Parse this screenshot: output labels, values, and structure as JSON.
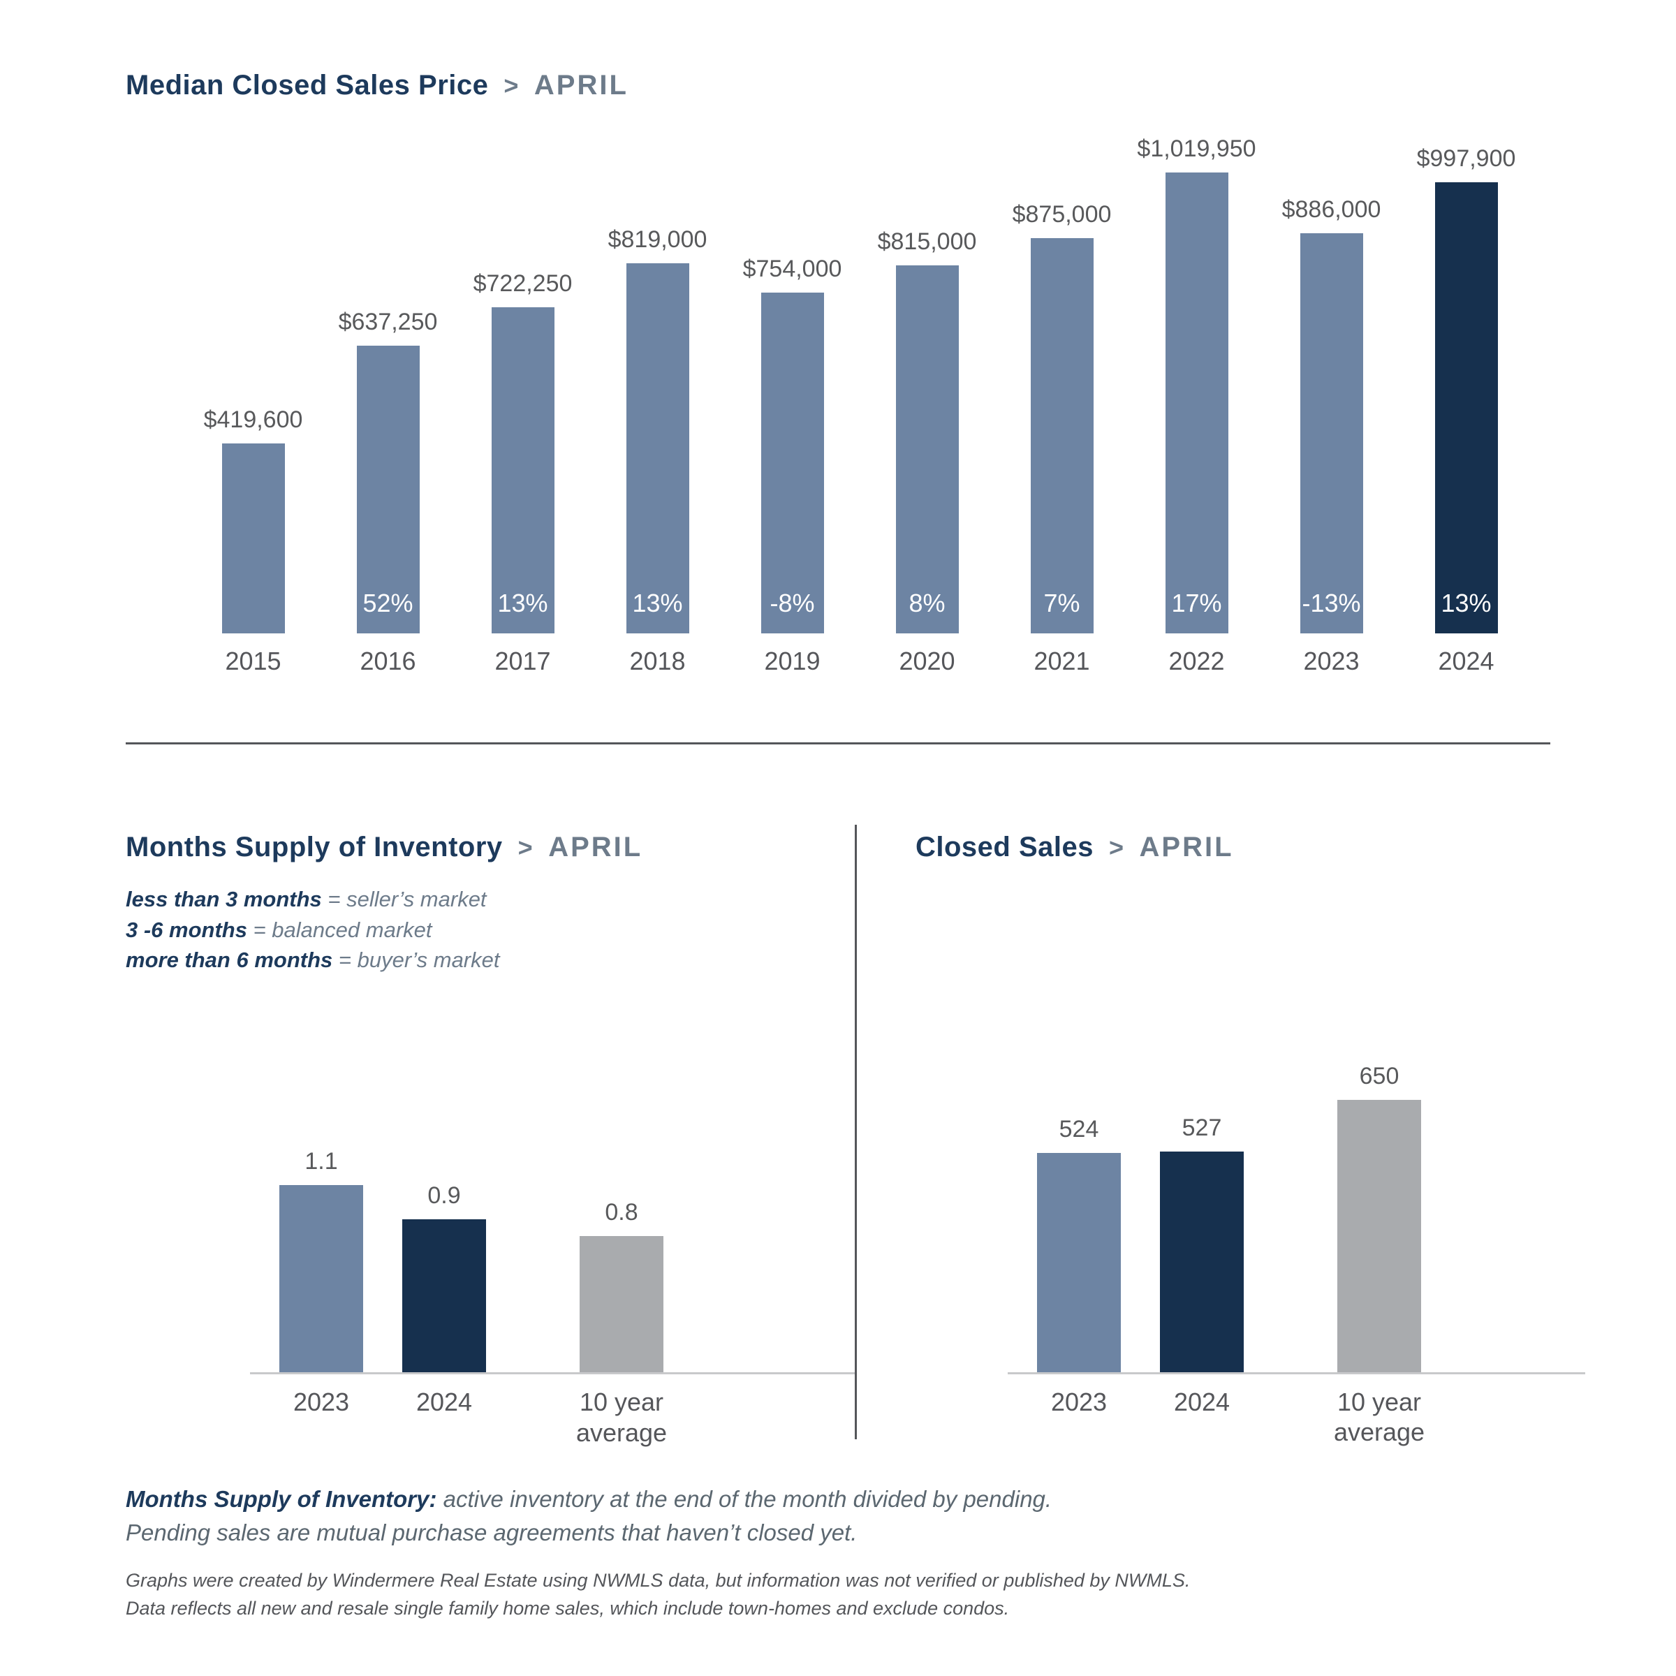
{
  "colors": {
    "bar_slate_blue": "#6D84A3",
    "bar_navy": "#16304E",
    "bar_gray": "#A9ABAE",
    "heading_navy": "#1D3A5C",
    "heading_gray": "#6D7B8A",
    "value_label_gray": "#58595B",
    "axis_label_gray": "#55565A",
    "percent_label_white": "#FFFFFF",
    "divider_gray": "#54565A",
    "baseline_gray": "#C8C9CB",
    "footnote_gray": "#5B6770",
    "disclaimer_gray": "#54565A"
  },
  "chart_data": [
    {
      "type": "bar",
      "title": "Median Closed Sales Price",
      "separator": ">",
      "month": "APRIL",
      "categories": [
        "2015",
        "2016",
        "2017",
        "2018",
        "2019",
        "2020",
        "2021",
        "2022",
        "2023",
        "2024"
      ],
      "values": [
        419600,
        637250,
        722250,
        819000,
        754000,
        815000,
        875000,
        1019950,
        886000,
        997900
      ],
      "value_labels": [
        "$419,600",
        "$637,250",
        "$722,250",
        "$819,000",
        "$754,000",
        "$815,000",
        "$875,000",
        "$1,019,950",
        "$886,000",
        "$997,900"
      ],
      "pct_labels": [
        "",
        "52%",
        "13%",
        "13%",
        "-8%",
        "8%",
        "7%",
        "17%",
        "-13%",
        "13%"
      ],
      "bar_colors": [
        "#6D84A3",
        "#6D84A3",
        "#6D84A3",
        "#6D84A3",
        "#6D84A3",
        "#6D84A3",
        "#6D84A3",
        "#6D84A3",
        "#6D84A3",
        "#16304E"
      ],
      "ylim": [
        0,
        1020000
      ],
      "xlabel": "",
      "ylabel": "",
      "grid": false,
      "legend_position": "none"
    },
    {
      "type": "bar",
      "title": "Months Supply of Inventory",
      "separator": ">",
      "month": "APRIL",
      "legend": [
        {
          "bold": "less than 3 months",
          "rest": "= seller’s market"
        },
        {
          "bold": "3 -6 months",
          "rest": "= balanced market"
        },
        {
          "bold": "more than 6 months",
          "rest": "= buyer’s market"
        }
      ],
      "categories": [
        "2023",
        "2024",
        "10 year\naverage"
      ],
      "values": [
        1.1,
        0.9,
        0.8
      ],
      "value_labels": [
        "1.1",
        "0.9",
        "0.8"
      ],
      "bar_colors": [
        "#6D84A3",
        "#16304E",
        "#A9ABAE"
      ],
      "ylim": [
        0,
        1.2
      ],
      "xlabel": "",
      "ylabel": "",
      "grid": false,
      "legend_position": "none"
    },
    {
      "type": "bar",
      "title": "Closed Sales",
      "separator": ">",
      "month": "APRIL",
      "categories": [
        "2023",
        "2024",
        "10 year\naverage"
      ],
      "values": [
        524,
        527,
        650
      ],
      "value_labels": [
        "524",
        "527",
        "650"
      ],
      "bar_colors": [
        "#6D84A3",
        "#16304E",
        "#A9ABAE"
      ],
      "ylim": [
        0,
        700
      ],
      "xlabel": "",
      "ylabel": "",
      "grid": false,
      "legend_position": "none"
    }
  ],
  "footnotes": {
    "definition_bold": "Months Supply of Inventory:",
    "definition_rest": "active inventory at the end of the month divided by pending.",
    "definition_line2": "Pending sales are mutual purchase agreements that haven’t closed yet.",
    "disclaimer_line1": "Graphs were created by Windermere Real Estate using NWMLS data, but information was not verified or published by NWMLS.",
    "disclaimer_line2": "Data reflects all new and resale single family home sales, which include town-homes and exclude condos."
  }
}
